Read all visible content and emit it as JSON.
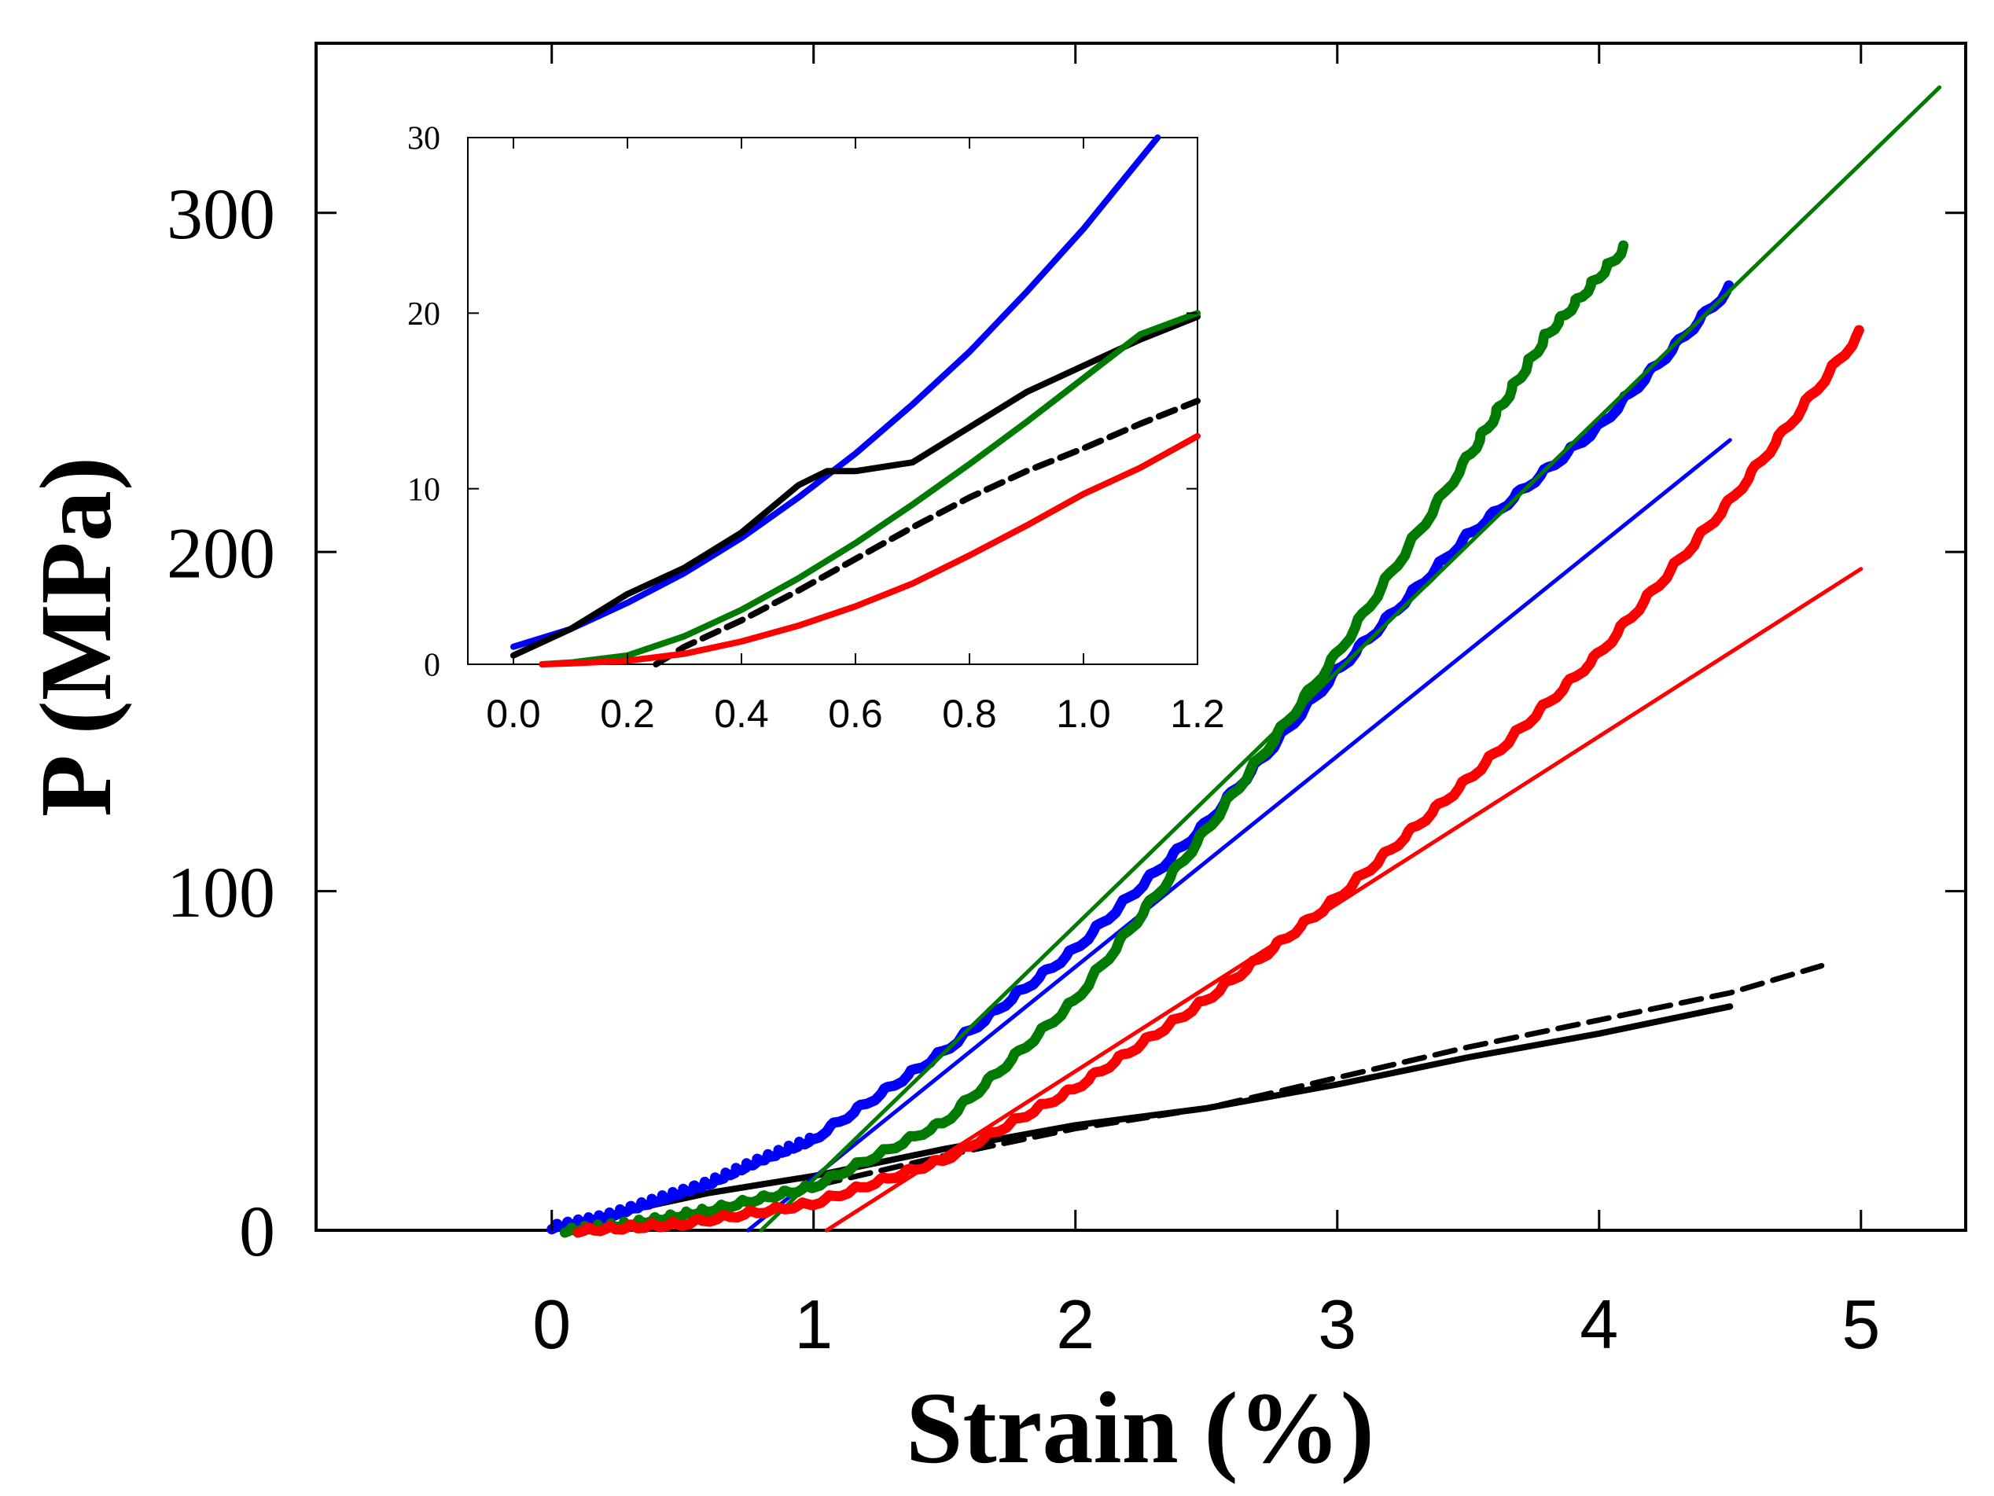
{
  "chart_data": [
    {
      "id": "main",
      "type": "line",
      "title": "",
      "xlabel": "Strain (%)",
      "ylabel": "P (MPa)",
      "xlim": [
        -0.9,
        5.4
      ],
      "ylim": [
        0,
        350
      ],
      "xticks": [
        0,
        1,
        2,
        3,
        4,
        5
      ],
      "yticks": [
        0,
        100,
        200,
        300
      ],
      "xtick_labels": [
        "0",
        "1",
        "2",
        "3",
        "4",
        "5"
      ],
      "ytick_labels": [
        "0",
        "100",
        "200",
        "300"
      ],
      "grid": false,
      "series": [
        {
          "name": "black solid",
          "color": "#000000",
          "style": "thick",
          "x": [
            0,
            0.3,
            0.6,
            1.0,
            1.5,
            2.0,
            2.5,
            3.0,
            3.5,
            4.0,
            4.5
          ],
          "y": [
            1,
            6,
            11,
            16,
            24,
            31,
            36,
            43,
            51,
            58,
            66
          ]
        },
        {
          "name": "black dashed",
          "color": "#000000",
          "style": "dashed",
          "x": [
            0.2,
            0.5,
            0.8,
            1.0,
            1.5,
            2.0,
            2.5,
            3.0,
            3.5,
            4.0,
            4.5,
            4.85
          ],
          "y": [
            1,
            4,
            9,
            13,
            22,
            30,
            36,
            45,
            54,
            62,
            70,
            78
          ]
        },
        {
          "name": "blue data",
          "color": "#0000ff",
          "style": "wavy",
          "x": [
            0,
            0.2,
            0.4,
            0.6,
            0.8,
            1.0,
            1.5,
            2.0,
            2.5,
            3.0,
            3.5,
            4.0,
            4.5
          ],
          "y": [
            1,
            4,
            9,
            14,
            21,
            27,
            53,
            83,
            120,
            165,
            205,
            237,
            278
          ]
        },
        {
          "name": "blue fit",
          "color": "#0000ff",
          "style": "fit",
          "x": [
            0.75,
            4.5
          ],
          "y": [
            0,
            233
          ]
        },
        {
          "name": "green data",
          "color": "#007a00",
          "style": "wavy",
          "x": [
            0.05,
            0.3,
            0.6,
            1.0,
            1.5,
            2.0,
            2.5,
            3.0,
            3.5,
            3.8,
            4.1
          ],
          "y": [
            0,
            2,
            6,
            13,
            32,
            68,
            118,
            170,
            228,
            264,
            290
          ]
        },
        {
          "name": "green fit",
          "color": "#007a00",
          "style": "fit",
          "x": [
            0.8,
            5.3
          ],
          "y": [
            0,
            337
          ]
        },
        {
          "name": "red data",
          "color": "#ff0000",
          "style": "wavy",
          "x": [
            0.1,
            0.5,
            1.0,
            1.5,
            2.0,
            2.5,
            3.0,
            3.5,
            4.0,
            4.5,
            5.0
          ],
          "y": [
            0,
            2,
            8,
            21,
            42,
            68,
            98,
            133,
            170,
            215,
            265
          ]
        },
        {
          "name": "red fit",
          "color": "#ff0000",
          "style": "fit",
          "x": [
            1.05,
            5.0
          ],
          "y": [
            0,
            195
          ]
        }
      ]
    },
    {
      "id": "inset",
      "type": "line",
      "title": "",
      "xlabel": "",
      "ylabel": "",
      "xlim": [
        -0.08,
        1.2
      ],
      "ylim": [
        0,
        30
      ],
      "xticks": [
        0.0,
        0.2,
        0.4,
        0.6,
        0.8,
        1.0,
        1.2
      ],
      "yticks": [
        0,
        10,
        20,
        30
      ],
      "xtick_labels": [
        "0.0",
        "0.2",
        "0.4",
        "0.6",
        "0.8",
        "1.0",
        "1.2"
      ],
      "ytick_labels": [
        "0",
        "10",
        "20",
        "30"
      ],
      "grid": false,
      "series": [
        {
          "name": "blue",
          "color": "#0000ff",
          "style": "solid",
          "x": [
            0,
            0.1,
            0.2,
            0.3,
            0.4,
            0.5,
            0.6,
            0.7,
            0.8,
            0.9,
            1.0,
            1.1,
            1.13
          ],
          "y": [
            1,
            2,
            3.5,
            5.2,
            7.2,
            9.5,
            12,
            14.8,
            17.8,
            21.2,
            24.8,
            28.8,
            30
          ]
        },
        {
          "name": "black solid",
          "color": "#000000",
          "style": "solid",
          "x": [
            0,
            0.1,
            0.2,
            0.3,
            0.4,
            0.5,
            0.55,
            0.6,
            0.7,
            0.8,
            0.9,
            1.0,
            1.1,
            1.2
          ],
          "y": [
            0.5,
            2,
            4,
            5.5,
            7.5,
            10.2,
            11,
            11,
            11.5,
            13.5,
            15.5,
            17,
            18.5,
            19.8
          ]
        },
        {
          "name": "black dashed",
          "color": "#000000",
          "style": "dashed",
          "x": [
            0.25,
            0.3,
            0.4,
            0.5,
            0.6,
            0.7,
            0.8,
            0.9,
            1.0,
            1.1,
            1.2
          ],
          "y": [
            0,
            1,
            2.5,
            4.2,
            6,
            7.8,
            9.5,
            11,
            12.3,
            13.7,
            15
          ]
        },
        {
          "name": "green",
          "color": "#007a00",
          "style": "solid",
          "x": [
            0.05,
            0.1,
            0.2,
            0.3,
            0.4,
            0.5,
            0.6,
            0.7,
            0.8,
            0.9,
            1.0,
            1.1,
            1.2
          ],
          "y": [
            0,
            0.1,
            0.5,
            1.6,
            3.1,
            4.9,
            6.9,
            9.1,
            11.4,
            13.8,
            16.3,
            18.8,
            20
          ]
        },
        {
          "name": "red",
          "color": "#ff0000",
          "style": "solid",
          "x": [
            0.05,
            0.1,
            0.2,
            0.3,
            0.4,
            0.5,
            0.6,
            0.7,
            0.8,
            0.9,
            1.0,
            1.1,
            1.2
          ],
          "y": [
            0,
            0.05,
            0.2,
            0.6,
            1.3,
            2.2,
            3.3,
            4.6,
            6.2,
            7.9,
            9.7,
            11.2,
            13
          ]
        }
      ]
    }
  ]
}
